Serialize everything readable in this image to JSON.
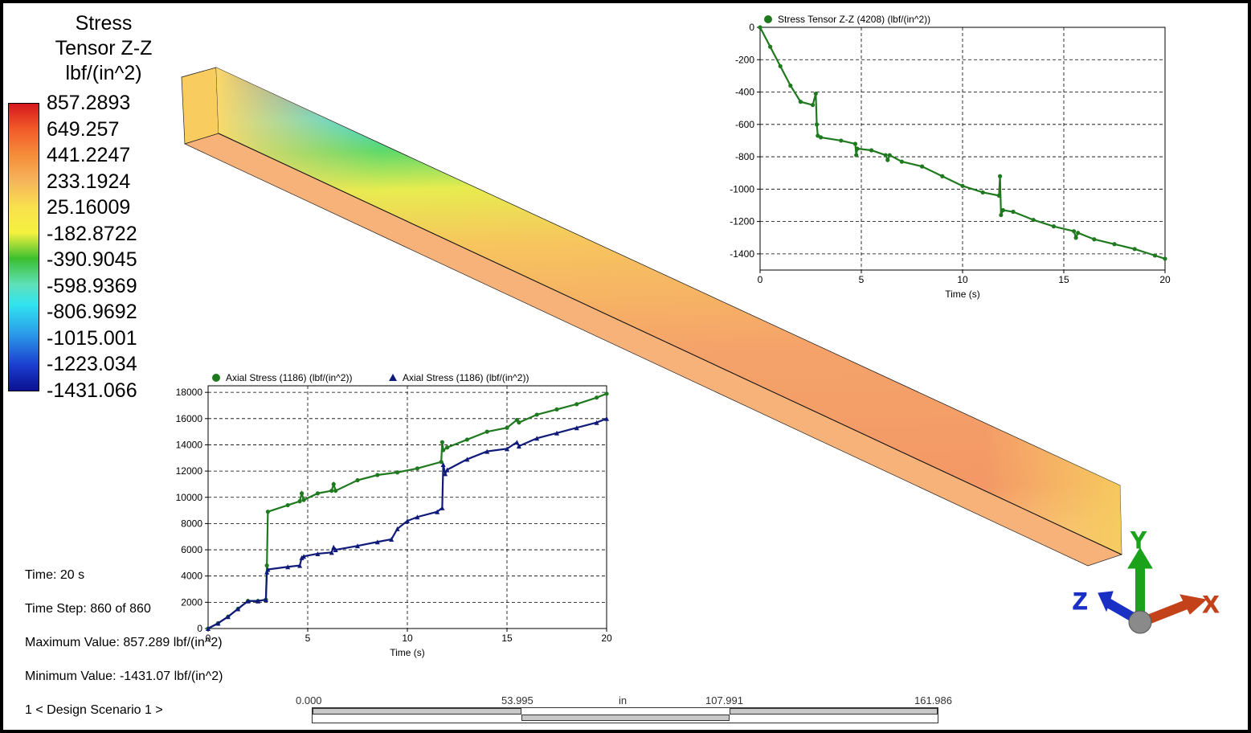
{
  "legend": {
    "title_lines": [
      "Stress",
      "Tensor Z-Z",
      "lbf/(in^2)"
    ],
    "values": [
      "857.2893",
      "649.257",
      "441.2247",
      "233.1924",
      "25.16009",
      "-182.8722",
      "-390.9045",
      "-598.9369",
      "-806.9692",
      "-1015.001",
      "-1223.034",
      "-1431.066"
    ]
  },
  "info": {
    "time": "Time: 20 s",
    "time_step": "Time Step:  860 of 860",
    "max_value": "Maximum Value: 857.289 lbf/(in^2)",
    "min_value": "Minimum Value: -1431.07 lbf/(in^2)",
    "scenario": "1 < Design Scenario 1 >"
  },
  "scale_bar": {
    "labels": [
      "0.000",
      "53.995",
      "in",
      "107.991",
      "161.986"
    ]
  },
  "triad": {
    "x_label": "X",
    "y_label": "Y",
    "z_label": "Z"
  },
  "colors": {
    "green_series": "#1f7a1f",
    "blue_series": "#101a7a",
    "axis_x": "#c4421a",
    "axis_y": "#1aa31a",
    "axis_z": "#1a2fc4"
  },
  "chart_data": [
    {
      "type": "line",
      "title": "",
      "xlabel": "Time (s)",
      "ylabel": "",
      "xlim": [
        0,
        20
      ],
      "ylim": [
        -1500,
        0
      ],
      "xticks": [
        0,
        5,
        10,
        15,
        20
      ],
      "yticks": [
        0,
        -200,
        -400,
        -600,
        -800,
        -1000,
        -1200,
        -1400
      ],
      "series": [
        {
          "name": "Stress Tensor Z-Z (4208) (lbf/(in^2))",
          "color": "#1f7a1f",
          "marker": "circle",
          "x": [
            0,
            0.5,
            1.0,
            1.5,
            2.0,
            2.6,
            2.75,
            2.8,
            2.85,
            3.0,
            4.0,
            4.7,
            4.75,
            4.8,
            5.5,
            6.2,
            6.3,
            6.4,
            7.0,
            8.0,
            9.0,
            10.0,
            11.0,
            11.8,
            11.85,
            11.9,
            12.0,
            12.5,
            13.5,
            14.5,
            15.5,
            15.6,
            15.7,
            16.5,
            17.5,
            18.5,
            19.5,
            20.0
          ],
          "values": [
            0,
            -120,
            -240,
            -360,
            -460,
            -480,
            -410,
            -600,
            -670,
            -680,
            -700,
            -720,
            -790,
            -750,
            -760,
            -790,
            -820,
            -790,
            -830,
            -860,
            -920,
            -980,
            -1020,
            -1040,
            -920,
            -1160,
            -1130,
            -1140,
            -1190,
            -1230,
            -1260,
            -1300,
            -1270,
            -1310,
            -1340,
            -1370,
            -1410,
            -1430
          ]
        }
      ]
    },
    {
      "type": "line",
      "title": "",
      "xlabel": "Time (s)",
      "ylabel": "",
      "xlim": [
        0,
        20
      ],
      "ylim": [
        0,
        18500
      ],
      "xticks": [
        0,
        5,
        10,
        15,
        20
      ],
      "yticks": [
        0,
        2000,
        4000,
        6000,
        8000,
        10000,
        12000,
        14000,
        16000,
        18000
      ],
      "series": [
        {
          "name": "Axial Stress  (1186) (lbf/(in^2))",
          "color": "#1f7a1f",
          "marker": "circle",
          "x": [
            0,
            0.5,
            1.0,
            1.5,
            2.0,
            2.5,
            2.9,
            2.95,
            3.0,
            4.0,
            4.6,
            4.7,
            4.8,
            5.5,
            6.2,
            6.3,
            6.4,
            7.5,
            8.5,
            9.5,
            10.5,
            11.7,
            11.75,
            11.8,
            12.0,
            13.0,
            14.0,
            15.0,
            15.5,
            15.6,
            16.5,
            17.5,
            18.5,
            19.5,
            20.0
          ],
          "values": [
            0,
            400,
            900,
            1500,
            2100,
            2100,
            2200,
            4800,
            8900,
            9400,
            9700,
            10300,
            9800,
            10300,
            10500,
            11000,
            10500,
            11300,
            11700,
            11900,
            12200,
            12700,
            14200,
            13600,
            13800,
            14400,
            15000,
            15300,
            15900,
            15700,
            16300,
            16700,
            17100,
            17600,
            17900
          ]
        },
        {
          "name": "Axial Stress  (1186) (lbf/(in^2))",
          "color": "#101a7a",
          "marker": "triangle",
          "x": [
            0,
            0.5,
            1.0,
            1.5,
            2.0,
            2.5,
            2.9,
            2.95,
            3.0,
            4.0,
            4.6,
            4.7,
            4.8,
            5.5,
            6.2,
            6.3,
            6.4,
            7.5,
            8.5,
            9.2,
            9.5,
            10.0,
            10.5,
            11.5,
            11.75,
            11.8,
            11.9,
            12.0,
            13.0,
            14.0,
            15.0,
            15.5,
            15.6,
            16.5,
            17.5,
            18.5,
            19.5,
            20.0
          ],
          "values": [
            0,
            400,
            900,
            1500,
            2100,
            2100,
            2200,
            4300,
            4500,
            4700,
            4800,
            5400,
            5500,
            5700,
            5800,
            6200,
            6000,
            6300,
            6600,
            6800,
            7600,
            8200,
            8500,
            8900,
            9200,
            12500,
            11800,
            12100,
            12900,
            13500,
            13700,
            14200,
            13900,
            14500,
            14900,
            15300,
            15700,
            16000
          ]
        }
      ]
    }
  ]
}
